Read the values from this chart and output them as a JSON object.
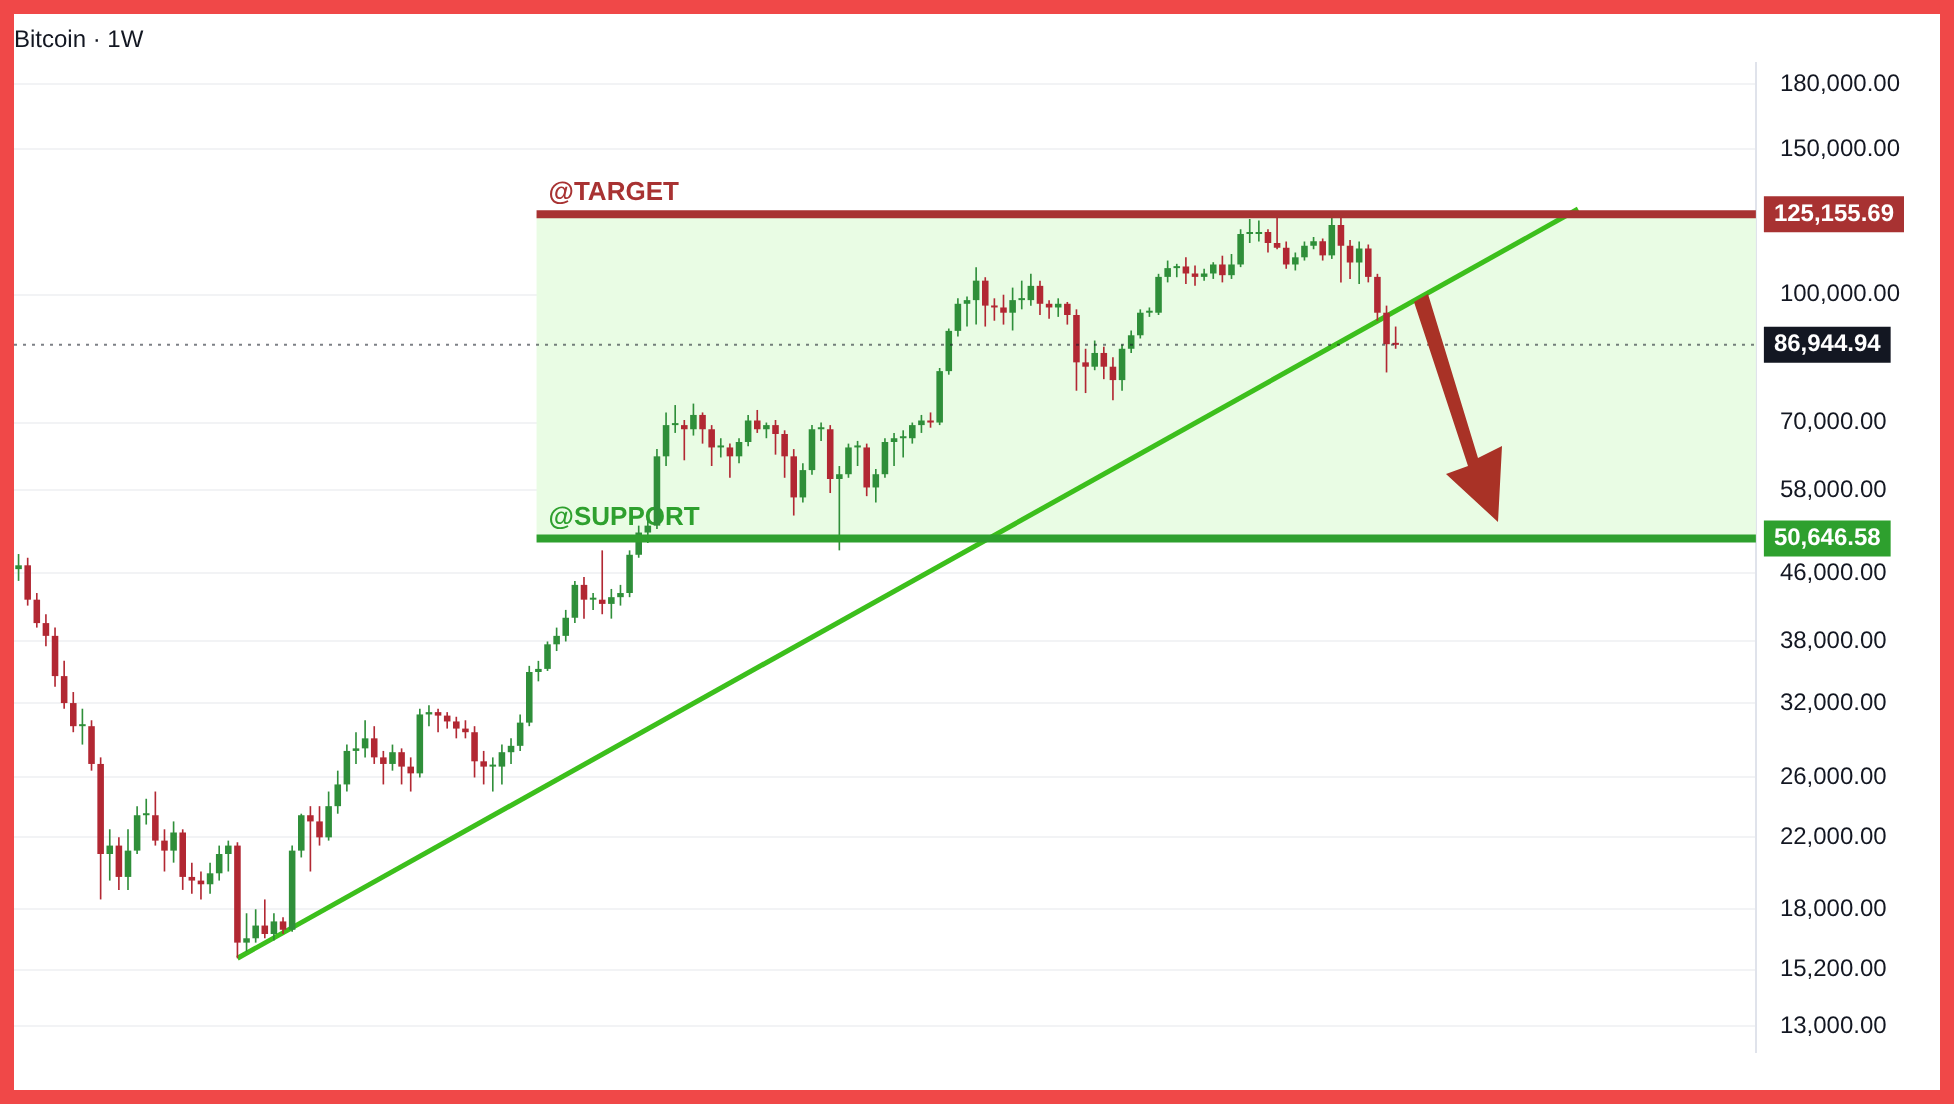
{
  "chart_data": {
    "type": "candlestick",
    "title": "Bitcoin · 1W",
    "categories": [
      null,
      null,
      null,
      null,
      null,
      null,
      null,
      null,
      null,
      null,
      null,
      null,
      null,
      null,
      null,
      null,
      null,
      null,
      null,
      null,
      null,
      null,
      null,
      null,
      null,
      null,
      null,
      null,
      null,
      null,
      null,
      null,
      null,
      null,
      null,
      null,
      null,
      null,
      null,
      null,
      null,
      null,
      null,
      null,
      null,
      null,
      null,
      null,
      null,
      null,
      null,
      null,
      null,
      null,
      null,
      null,
      null,
      null,
      null,
      null,
      null,
      null,
      null,
      null,
      null,
      null,
      null,
      null,
      null,
      null,
      null,
      null,
      null,
      null,
      null,
      null,
      null,
      null,
      null,
      null,
      null,
      null,
      null,
      null,
      null,
      null,
      null,
      null,
      null,
      null,
      null,
      null,
      null,
      null,
      null,
      null,
      null,
      null,
      null,
      null,
      null,
      null,
      null,
      null,
      null,
      null,
      null,
      null,
      null,
      null,
      null,
      null,
      null,
      null,
      null,
      null,
      null,
      null,
      null,
      null,
      null,
      null,
      null,
      null,
      null,
      null,
      null,
      null,
      null,
      null,
      null,
      null,
      null,
      null,
      null,
      null,
      null,
      null,
      null,
      null,
      null,
      null,
      null,
      null,
      null,
      null,
      null,
      null,
      null,
      null,
      null,
      null,
      null,
      null,
      null,
      null,
      null,
      null,
      null,
      null,
      null,
      null,
      null,
      null,
      null,
      null,
      null,
      null,
      null,
      null,
      null,
      null,
      null,
      null,
      null,
      null,
      null,
      null,
      null,
      null,
      null,
      null,
      null,
      null,
      null,
      null,
      null,
      null,
      null,
      null,
      null
    ],
    "colors": [
      "#2f8f3a",
      "#b22833"
    ],
    "series": [
      {
        "ohlc": [
          [
            46500,
            48500,
            45000,
            47000
          ],
          [
            47000,
            48000,
            42000,
            42700
          ],
          [
            42700,
            43500,
            39500,
            40000
          ],
          [
            40000,
            41000,
            37500,
            38600
          ],
          [
            38600,
            39500,
            33500,
            34500
          ],
          [
            34500,
            36000,
            31500,
            32000
          ],
          [
            32000,
            33000,
            29500,
            30000
          ],
          [
            30000,
            31500,
            28500,
            30000
          ],
          [
            30000,
            30500,
            26500,
            27000
          ],
          [
            27000,
            27500,
            18500,
            21000
          ],
          [
            21000,
            22500,
            19500,
            21500
          ],
          [
            21500,
            22000,
            19000,
            19700
          ],
          [
            19700,
            22500,
            19000,
            21200
          ],
          [
            21200,
            24000,
            21000,
            23400
          ],
          [
            23400,
            24500,
            22800,
            23400
          ],
          [
            23400,
            25000,
            21500,
            21800
          ],
          [
            21800,
            22500,
            20000,
            21200
          ],
          [
            21200,
            23000,
            20500,
            22300
          ],
          [
            22300,
            22500,
            19000,
            19700
          ],
          [
            19700,
            20500,
            18800,
            19500
          ],
          [
            19500,
            20000,
            18500,
            19300
          ],
          [
            19300,
            20500,
            18800,
            19900
          ],
          [
            19900,
            21500,
            19500,
            21000
          ],
          [
            21000,
            21800,
            20000,
            21500
          ],
          [
            21500,
            21700,
            15700,
            16400
          ],
          [
            16400,
            17800,
            16000,
            16600
          ],
          [
            16600,
            18000,
            16400,
            17200
          ],
          [
            17200,
            18500,
            16600,
            16800
          ],
          [
            16800,
            17800,
            16500,
            17400
          ],
          [
            17400,
            17600,
            16800,
            17000
          ],
          [
            17000,
            21500,
            16900,
            21200
          ],
          [
            21200,
            23500,
            20800,
            23400
          ],
          [
            23400,
            24000,
            20000,
            23000
          ],
          [
            23000,
            24000,
            21500,
            22000
          ],
          [
            22000,
            25000,
            21800,
            24000
          ],
          [
            24000,
            26500,
            23500,
            25500
          ],
          [
            25500,
            28500,
            25000,
            28000
          ],
          [
            28000,
            29500,
            27000,
            28200
          ],
          [
            28200,
            30500,
            27500,
            29000
          ],
          [
            29000,
            30000,
            27000,
            27500
          ],
          [
            27500,
            28000,
            25500,
            27000
          ],
          [
            27000,
            28500,
            26500,
            27900
          ],
          [
            27900,
            28200,
            25500,
            26800
          ],
          [
            26800,
            27500,
            25000,
            26300
          ],
          [
            26300,
            31500,
            26000,
            31000
          ],
          [
            31000,
            31800,
            30000,
            31200
          ],
          [
            31200,
            31500,
            29500,
            30900
          ],
          [
            30900,
            31200,
            29800,
            30400
          ],
          [
            30400,
            30800,
            29000,
            29800
          ],
          [
            29800,
            30500,
            29000,
            29500
          ],
          [
            29500,
            30000,
            26000,
            27200
          ],
          [
            27200,
            28000,
            25500,
            26800
          ],
          [
            26800,
            27500,
            25000,
            26800
          ],
          [
            26800,
            28500,
            25500,
            27900
          ],
          [
            27900,
            29000,
            27000,
            28400
          ],
          [
            28400,
            31000,
            28000,
            30300
          ],
          [
            30300,
            35500,
            30000,
            34900
          ],
          [
            34900,
            36000,
            34000,
            35200
          ],
          [
            35200,
            38000,
            35000,
            37700
          ],
          [
            37700,
            39500,
            37000,
            38600
          ],
          [
            38600,
            41500,
            38000,
            40600
          ],
          [
            40600,
            45000,
            40000,
            44500
          ],
          [
            44500,
            45500,
            40500,
            42700
          ],
          [
            42700,
            43500,
            41500,
            42700
          ],
          [
            42700,
            49000,
            41000,
            42200
          ],
          [
            42200,
            44000,
            40500,
            43000
          ],
          [
            43000,
            44500,
            42000,
            43500
          ],
          [
            43500,
            49000,
            43000,
            48400
          ],
          [
            48400,
            52500,
            48000,
            51500
          ],
          [
            51500,
            53500,
            50000,
            52500
          ],
          [
            52500,
            65000,
            52000,
            63700
          ],
          [
            63700,
            72000,
            62000,
            69500
          ],
          [
            69500,
            73500,
            68000,
            69500
          ],
          [
            69500,
            70500,
            63000,
            68700
          ],
          [
            68700,
            73800,
            67500,
            71500
          ],
          [
            71500,
            72000,
            66000,
            68700
          ],
          [
            68700,
            69500,
            62000,
            65300
          ],
          [
            65300,
            67000,
            63500,
            65300
          ],
          [
            65300,
            66000,
            60000,
            63700
          ],
          [
            63700,
            67000,
            62500,
            66300
          ],
          [
            66300,
            71500,
            65500,
            70400
          ],
          [
            70400,
            72500,
            68000,
            68700
          ],
          [
            68700,
            70000,
            67000,
            69500
          ],
          [
            69500,
            70500,
            64000,
            67800
          ],
          [
            67800,
            68500,
            60000,
            63700
          ],
          [
            63700,
            65000,
            54000,
            56800
          ],
          [
            56800,
            62500,
            56000,
            61300
          ],
          [
            61300,
            69500,
            60500,
            68700
          ],
          [
            68700,
            70000,
            66500,
            68700
          ],
          [
            68700,
            69500,
            57500,
            59800
          ],
          [
            59800,
            62000,
            49000,
            60600
          ],
          [
            60600,
            66000,
            60000,
            65300
          ],
          [
            65300,
            66500,
            62000,
            65300
          ],
          [
            65300,
            66000,
            57000,
            58400
          ],
          [
            58400,
            61500,
            56000,
            60600
          ],
          [
            60600,
            67000,
            60000,
            66300
          ],
          [
            66300,
            68000,
            62000,
            67000
          ],
          [
            67000,
            68500,
            63500,
            67000
          ],
          [
            67000,
            70000,
            66000,
            69500
          ],
          [
            69500,
            71500,
            68000,
            70400
          ],
          [
            70400,
            72000,
            69000,
            70000
          ],
          [
            70000,
            81500,
            69500,
            80800
          ],
          [
            80800,
            91000,
            80000,
            90400
          ],
          [
            90400,
            99000,
            89000,
            97500
          ],
          [
            97500,
            99500,
            91500,
            98500
          ],
          [
            98500,
            108000,
            92000,
            104000
          ],
          [
            104000,
            105000,
            91500,
            97000
          ],
          [
            97000,
            99000,
            93000,
            96500
          ],
          [
            96500,
            100000,
            92000,
            95100
          ],
          [
            95100,
            102000,
            90500,
            98500
          ],
          [
            98500,
            104000,
            96000,
            98500
          ],
          [
            98500,
            106000,
            97000,
            102500
          ],
          [
            102500,
            104000,
            94500,
            97500
          ],
          [
            97500,
            98500,
            93500,
            96500
          ],
          [
            96500,
            99000,
            94000,
            97500
          ],
          [
            97500,
            98000,
            92000,
            94500
          ],
          [
            94500,
            96000,
            76500,
            82800
          ],
          [
            82800,
            86000,
            76000,
            81800
          ],
          [
            81800,
            88000,
            81000,
            85000
          ],
          [
            85000,
            86500,
            79000,
            81800
          ],
          [
            81800,
            84000,
            74500,
            78800
          ],
          [
            78800,
            87000,
            76500,
            86000
          ],
          [
            86000,
            90500,
            85000,
            89300
          ],
          [
            89300,
            96000,
            88500,
            95100
          ],
          [
            95100,
            96500,
            94000,
            95100
          ],
          [
            95100,
            106000,
            94500,
            105100
          ],
          [
            105100,
            110000,
            103500,
            107700
          ],
          [
            107700,
            109000,
            105000,
            108200
          ],
          [
            108200,
            111000,
            103000,
            106100
          ],
          [
            106100,
            108500,
            102500,
            105100
          ],
          [
            105100,
            107500,
            104000,
            106100
          ],
          [
            106100,
            109500,
            104500,
            108800
          ],
          [
            108800,
            111500,
            103500,
            105600
          ],
          [
            105600,
            112000,
            104500,
            108800
          ],
          [
            108800,
            120000,
            108000,
            118500
          ],
          [
            118500,
            123500,
            115500,
            118500
          ],
          [
            118500,
            123000,
            116000,
            119100
          ],
          [
            119100,
            120000,
            112500,
            115500
          ],
          [
            115500,
            124000,
            113500,
            114000
          ],
          [
            114000,
            116000,
            107500,
            108800
          ],
          [
            108800,
            112500,
            107000,
            111000
          ],
          [
            111000,
            116000,
            110000,
            114600
          ],
          [
            114600,
            117500,
            113500,
            116100
          ],
          [
            116100,
            117000,
            110000,
            111600
          ],
          [
            111600,
            125000,
            110500,
            121500
          ],
          [
            121500,
            124500,
            103500,
            114600
          ],
          [
            114600,
            116500,
            104500,
            109400
          ],
          [
            109400,
            116000,
            103000,
            113800
          ],
          [
            113800,
            115000,
            103500,
            105100
          ],
          [
            105100,
            106000,
            93000,
            95100
          ],
          [
            95100,
            97000,
            80500,
            87100
          ],
          [
            87100,
            91500,
            86000,
            86945
          ],
          null,
          null,
          null,
          null,
          null,
          null,
          null,
          null,
          null,
          null,
          null,
          null,
          null,
          null,
          null,
          null,
          null,
          null,
          null,
          null,
          null,
          null,
          null,
          null,
          null,
          null,
          null,
          null,
          null,
          null,
          null,
          null,
          null,
          null,
          null,
          null,
          null,
          null,
          null
        ]
      },
      {
        "type": "line",
        "color": "#3cbf1c",
        "values": [
          null,
          null,
          null,
          null,
          null,
          null,
          null,
          null,
          null,
          null,
          null,
          null,
          null,
          null,
          null,
          null,
          null,
          null,
          null,
          null,
          null,
          null,
          null,
          null,
          15700,
          null,
          null,
          null,
          null,
          null,
          null,
          null,
          null,
          null,
          null,
          null,
          null,
          null,
          null,
          null,
          null,
          null,
          null,
          null,
          null,
          null,
          null,
          null,
          null,
          null,
          null,
          null,
          null,
          null,
          null,
          null,
          null,
          null,
          null,
          null,
          null,
          null,
          null,
          null,
          null,
          null,
          null,
          null,
          null,
          null,
          null,
          null,
          null,
          null,
          null,
          null,
          null,
          null,
          null,
          null,
          null,
          null,
          null,
          null,
          null,
          null,
          null,
          null,
          null,
          null,
          null,
          null,
          null,
          null,
          null,
          null,
          null,
          null,
          null,
          null,
          null,
          null,
          null,
          null,
          null,
          null,
          null,
          null,
          null,
          null,
          null,
          null,
          null,
          null,
          null,
          null,
          null,
          null,
          null,
          null,
          null,
          null,
          null,
          null,
          null,
          null,
          null,
          null,
          null,
          null,
          null,
          null,
          null,
          null,
          null,
          null,
          null,
          null,
          null,
          null,
          null,
          null,
          null,
          null,
          null,
          null,
          null,
          null,
          null,
          null,
          null,
          null,
          null,
          null,
          null,
          null,
          null,
          null,
          null,
          null,
          null,
          null,
          null,
          null,
          null,
          null,
          null,
          null,
          null,
          null,
          null,
          127000,
          null,
          null,
          null,
          null,
          null,
          null,
          null,
          null,
          null,
          null,
          null,
          null,
          null,
          null,
          null,
          null,
          null,
          null,
          null
        ]
      }
    ],
    "log": "y",
    "ylim": [
      12100,
      191000
    ],
    "yticks": [
      {
        "value": 180000,
        "label": "180,000.00"
      },
      {
        "value": 150000,
        "label": "150,000.00"
      },
      {
        "value": 100000,
        "label": "100,000.00"
      },
      {
        "value": 70000,
        "label": "70,000.00"
      },
      {
        "value": 58000,
        "label": "58,000.00"
      },
      {
        "value": 46000,
        "label": "46,000.00"
      },
      {
        "value": 38000,
        "label": "38,000.00"
      },
      {
        "value": 32000,
        "label": "32,000.00"
      },
      {
        "value": 26000,
        "label": "26,000.00"
      },
      {
        "value": 22000,
        "label": "22,000.00"
      },
      {
        "value": 18000,
        "label": "18,000.00"
      },
      {
        "value": 15200,
        "label": "15,200.00"
      },
      {
        "value": 13000,
        "label": "13,000.00"
      }
    ],
    "ref_lines": [
      {
        "axis": "y",
        "value": 125155.69,
        "label": "125,155.69",
        "color": "#a83232"
      },
      {
        "axis": "y",
        "value": 86944.94,
        "label": "86,944.94",
        "color": "#131722",
        "line_style": "dotted"
      },
      {
        "axis": "y",
        "value": 50646.58,
        "label": "50,646.58",
        "color": "#2ea02e"
      }
    ],
    "bands": [
      {
        "axis": "y",
        "from": 50646.58,
        "to": 125155.69,
        "color": "#e9fce4"
      }
    ],
    "annotations": [
      {
        "text": "@TARGET",
        "y": 125155.69
      },
      {
        "text": "@SUPPORT",
        "y": 50646.58
      }
    ],
    "grid": "y",
    "legend": false,
    "tick_labels": "y"
  }
}
